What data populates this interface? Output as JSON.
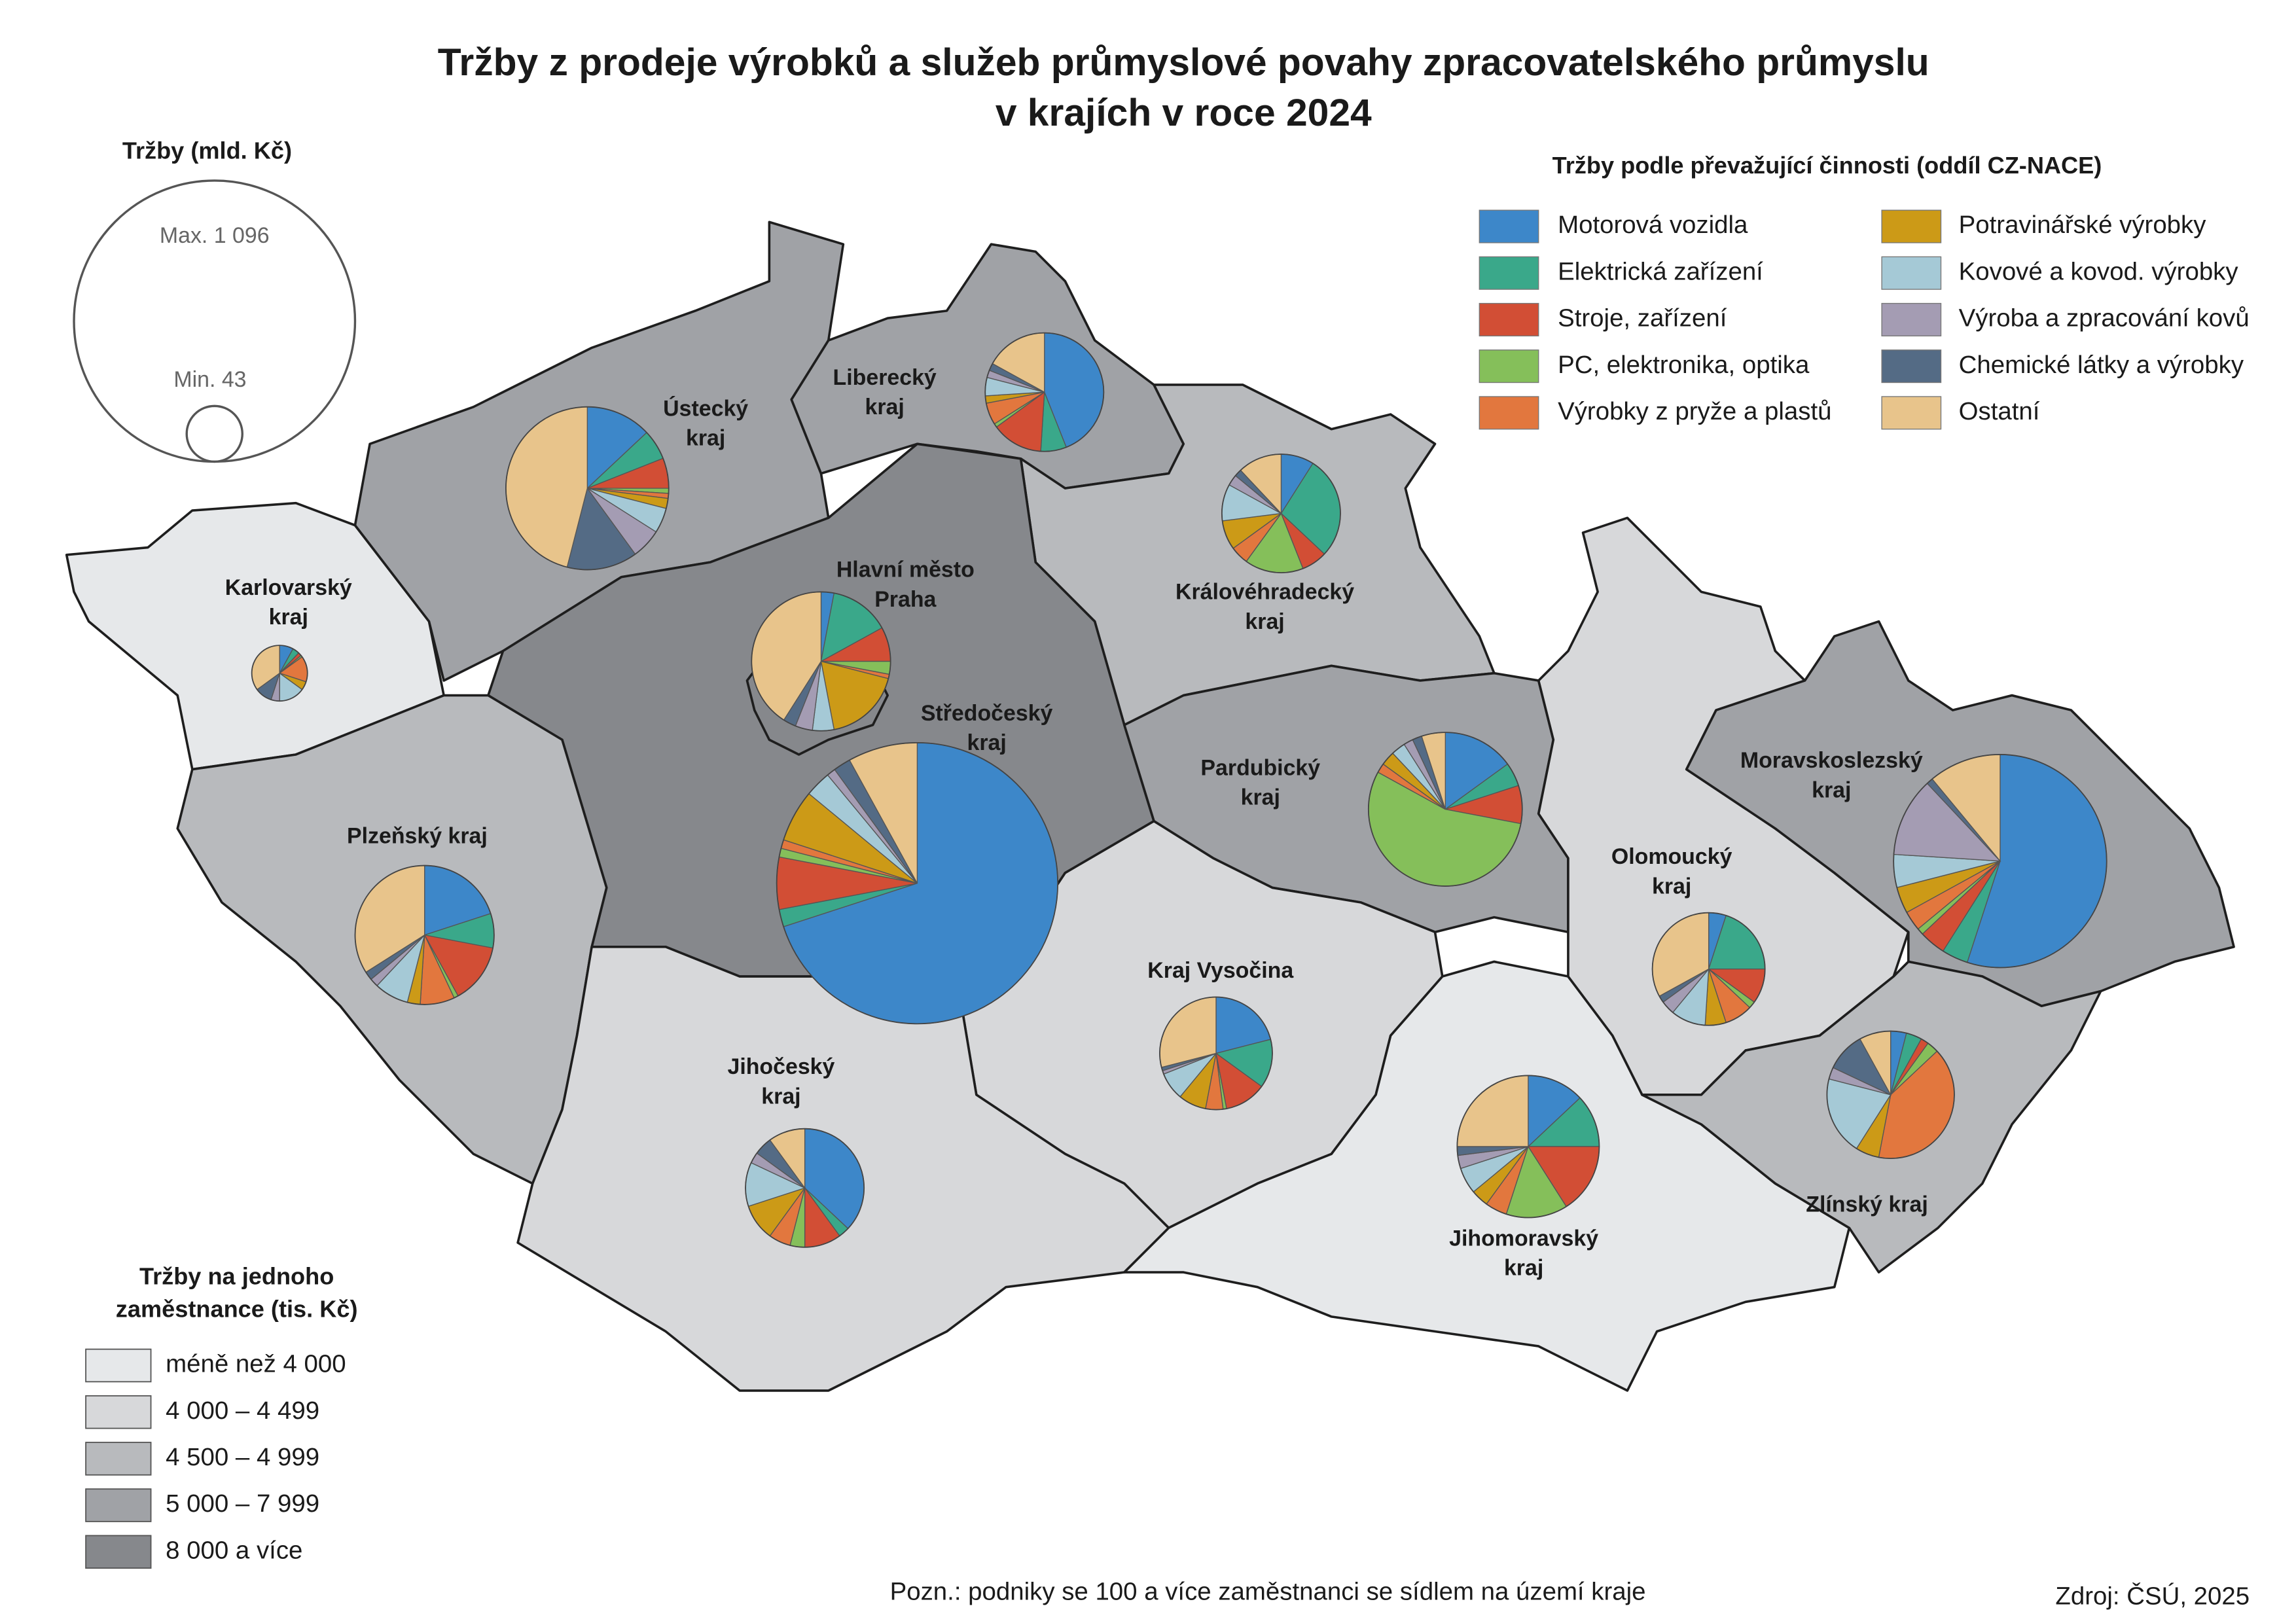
{
  "title": [
    "Tržby z prodeje výrobků a služeb průmyslové povahy zpracovatelského průmyslu",
    "v krajích v roce 2024"
  ],
  "size_legend": {
    "title": "Tržby (mld. Kč)",
    "max": {
      "value": 1096,
      "label": "Max. 1 096"
    },
    "min": {
      "value": 43,
      "label": "Min. 43"
    }
  },
  "category_legend": {
    "title": "Tržby podle převažující činnosti (oddíl CZ-NACE)",
    "categories": [
      {
        "name": "Motorová vozidla",
        "color": "#3d87c9"
      },
      {
        "name": "Elektrická zařízení",
        "color": "#3aa88a"
      },
      {
        "name": "Stroje, zařízení",
        "color": "#d24e35"
      },
      {
        "name": "PC, elektronika, optika",
        "color": "#85bf5a"
      },
      {
        "name": "Výrobky z pryže a plastů",
        "color": "#e2773e"
      },
      {
        "name": "Potravinářské výrobky",
        "color": "#cc9a17"
      },
      {
        "name": "Kovové a kovod. výrobky",
        "color": "#a5c9d6"
      },
      {
        "name": "Výroba a zpracování kovů",
        "color": "#a49cb3"
      },
      {
        "name": "Chemické látky a výrobky",
        "color": "#546b85"
      },
      {
        "name": "Ostatní",
        "color": "#e8c48b"
      }
    ]
  },
  "class_legend": {
    "title": [
      "Tržby na jednoho",
      "zaměstnance (tis. Kč)"
    ],
    "classes": [
      {
        "label": "méně než 4 000",
        "color": "#e6e8ea"
      },
      {
        "label": "4 000 – 4 499",
        "color": "#d7d8da"
      },
      {
        "label": "4 500 – 4 999",
        "color": "#b8babd"
      },
      {
        "label": "5 000 – 7 999",
        "color": "#a0a2a6"
      },
      {
        "label": "8 000 a více",
        "color": "#86888c"
      }
    ]
  },
  "regions": [
    {
      "label": [
        "Karlovarský",
        "kraj"
      ],
      "color": "#e6e8ea",
      "total": 43,
      "shares": [
        8,
        4,
        2,
        1,
        15,
        5,
        15,
        5,
        10,
        35
      ]
    },
    {
      "label": [
        "Ústecký",
        "kraj"
      ],
      "color": "#a0a2a6",
      "total": 368,
      "shares": [
        13,
        6,
        6,
        1,
        1,
        2,
        5,
        6,
        14,
        46
      ]
    },
    {
      "label": [
        "Liberecký",
        "kraj"
      ],
      "color": "#a0a2a6",
      "total": 195,
      "shares": [
        44,
        7,
        14,
        1,
        6,
        2,
        5,
        2,
        2,
        17
      ]
    },
    {
      "label": [
        "Královéhradecký",
        "kraj"
      ],
      "color": "#b8babd",
      "total": 195,
      "shares": [
        9,
        28,
        7,
        16,
        5,
        8,
        10,
        3,
        2,
        12
      ]
    },
    {
      "label": [
        "Středočeský",
        "kraj"
      ],
      "color": "#86888c",
      "total": 1096,
      "shares": [
        70,
        2,
        6,
        1,
        1,
        6,
        3,
        1,
        2,
        8
      ]
    },
    {
      "label": [
        "Hlavní město",
        "Praha"
      ],
      "color": "#86888c",
      "total": 268,
      "shares": [
        3,
        14,
        8,
        3,
        1,
        18,
        5,
        4,
        3,
        41
      ]
    },
    {
      "label": [
        "Plzeňský kraj"
      ],
      "color": "#b8babd",
      "total": 268,
      "shares": [
        20,
        8,
        14,
        1,
        8,
        3,
        8,
        2,
        2,
        34
      ]
    },
    {
      "label": [
        "Pardubický",
        "kraj"
      ],
      "color": "#a0a2a6",
      "total": 328,
      "shares": [
        15,
        5,
        8,
        55,
        2,
        3,
        3,
        2,
        2,
        5
      ]
    },
    {
      "label": [
        "Kraj Vysočina"
      ],
      "color": "#d7d8da",
      "total": 176,
      "shares": [
        21,
        14,
        12,
        1,
        5,
        8,
        8,
        1,
        1,
        29
      ]
    },
    {
      "label": [
        "Jihočeský",
        "kraj"
      ],
      "color": "#d7d8da",
      "total": 195,
      "shares": [
        37,
        3,
        10,
        4,
        6,
        10,
        12,
        3,
        5,
        10
      ]
    },
    {
      "label": [
        "Jihomoravský",
        "kraj"
      ],
      "color": "#e6e8ea",
      "total": 280,
      "shares": [
        13,
        12,
        16,
        14,
        5,
        4,
        6,
        3,
        2,
        25
      ]
    },
    {
      "label": [
        "Olomoucký",
        "kraj"
      ],
      "color": "#d7d8da",
      "total": 176,
      "shares": [
        5,
        20,
        10,
        2,
        8,
        6,
        10,
        4,
        2,
        33
      ]
    },
    {
      "label": [
        "Moravskoslezský",
        "kraj"
      ],
      "color": "#a0a2a6",
      "total": 630,
      "shares": [
        55,
        4,
        4,
        1,
        3,
        4,
        5,
        12,
        1,
        11
      ]
    },
    {
      "label": [
        "Zlínský kraj"
      ],
      "color": "#b8babd",
      "total": 225,
      "shares": [
        4,
        4,
        2,
        3,
        40,
        6,
        20,
        3,
        10,
        8
      ]
    }
  ],
  "note": "Pozn.: podniky se 100 a více zaměstnanci se sídlem na území kraje",
  "source": "Zdroj: ČSÚ, 2025"
}
